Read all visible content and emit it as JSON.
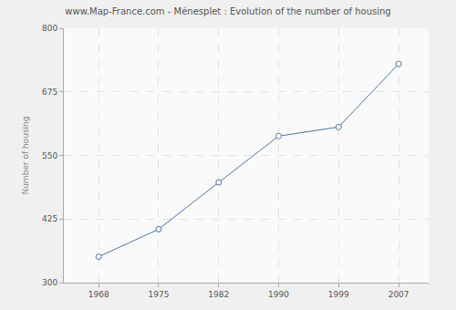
{
  "chart_data": {
    "type": "line",
    "title": "www.Map-France.com - Ménesplet : Evolution of the number of housing",
    "y_label": "Number of housing",
    "categories": [
      "1968",
      "1975",
      "1982",
      "1990",
      "1999",
      "2007"
    ],
    "values": [
      351,
      405,
      497,
      588,
      606,
      730
    ],
    "color": "#4f75a0",
    "marker": "circle",
    "ylim": [
      300,
      800
    ],
    "yticks": [
      300,
      425,
      550,
      675,
      800
    ],
    "grid": true
  }
}
